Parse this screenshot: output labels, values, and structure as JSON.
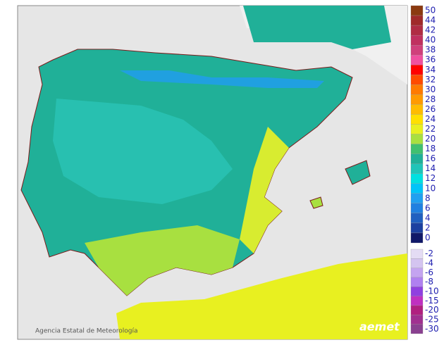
{
  "legend": {
    "upper": [
      {
        "value": 50,
        "color": "#8b3a10"
      },
      {
        "value": 44,
        "color": "#a02a2a"
      },
      {
        "value": 42,
        "color": "#b02c44"
      },
      {
        "value": 40,
        "color": "#c03060"
      },
      {
        "value": 38,
        "color": "#d0407c"
      },
      {
        "value": 36,
        "color": "#f050a0"
      },
      {
        "value": 34,
        "color": "#ff0000"
      },
      {
        "value": 32,
        "color": "#ff4a00"
      },
      {
        "value": 30,
        "color": "#ff7a00"
      },
      {
        "value": 28,
        "color": "#ff9a00"
      },
      {
        "value": 26,
        "color": "#ffbc00"
      },
      {
        "value": 24,
        "color": "#ffe000"
      },
      {
        "value": 22,
        "color": "#e8f020"
      },
      {
        "value": 20,
        "color": "#a8e040"
      },
      {
        "value": 18,
        "color": "#40c070"
      },
      {
        "value": 16,
        "color": "#20b098"
      },
      {
        "value": 14,
        "color": "#20c4b8"
      },
      {
        "value": 12,
        "color": "#00e0e0"
      },
      {
        "value": 10,
        "color": "#00c4f8"
      },
      {
        "value": 8,
        "color": "#20a0f0"
      },
      {
        "value": 6,
        "color": "#2080e0"
      },
      {
        "value": 4,
        "color": "#2060c0"
      },
      {
        "value": 2,
        "color": "#1c40a0"
      },
      {
        "value": 0,
        "color": "#101868"
      }
    ],
    "lower": [
      {
        "value": -2,
        "color": "#e4dcf4"
      },
      {
        "value": -4,
        "color": "#d4c4f0"
      },
      {
        "value": -6,
        "color": "#c4a4f0"
      },
      {
        "value": -8,
        "color": "#b080f0"
      },
      {
        "value": -10,
        "color": "#9040e0"
      },
      {
        "value": -15,
        "color": "#c030c0"
      },
      {
        "value": -20,
        "color": "#b02080"
      },
      {
        "value": -25,
        "color": "#a03090"
      },
      {
        "value": -30,
        "color": "#8a4090"
      }
    ]
  },
  "credit": "Agencia Estatal de Meteorología",
  "logo": "aemet"
}
